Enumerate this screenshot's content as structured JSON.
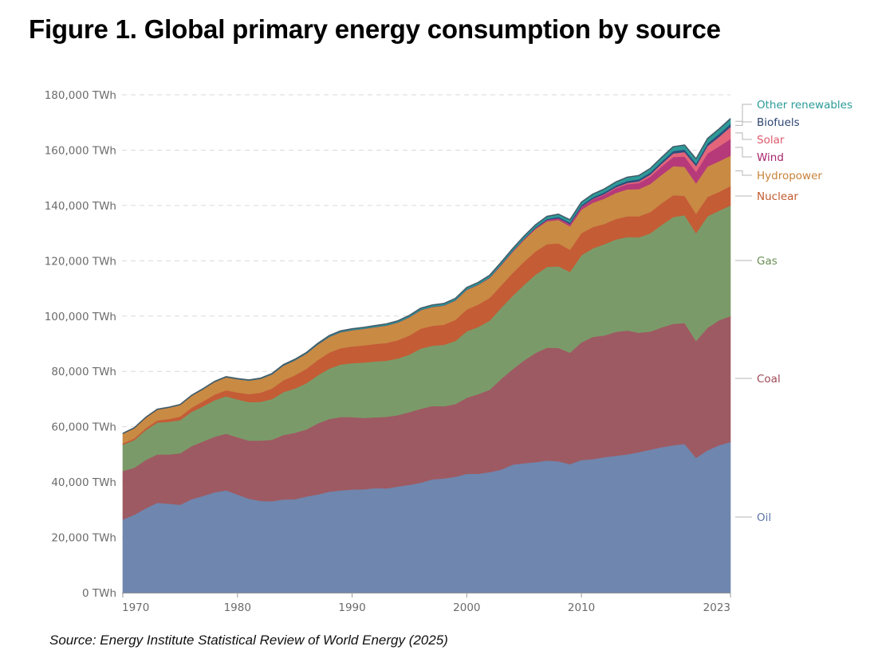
{
  "figure": {
    "title": "Figure 1. Global primary energy consumption by source",
    "source": "Source: Energy Institute Statistical Review of World Energy (2025)"
  },
  "chart_data": {
    "type": "area",
    "stacked": true,
    "title": "Figure 1. Global primary energy consumption by source",
    "xlabel": "",
    "ylabel": "",
    "unit": "TWh",
    "xlim": [
      1970,
      2023
    ],
    "ylim": [
      0,
      180000
    ],
    "grid": true,
    "legend_placement": "right (inline labels)",
    "x_ticks": [
      1970,
      1980,
      1990,
      2000,
      2010,
      2023
    ],
    "x_tick_labels": [
      "1970",
      "1980",
      "1990",
      "2000",
      "2010",
      "2023"
    ],
    "y_ticks": [
      0,
      20000,
      40000,
      60000,
      80000,
      100000,
      120000,
      140000,
      160000,
      180000
    ],
    "y_tick_labels": [
      "0 TWh",
      "20,000 TWh",
      "40,000 TWh",
      "60,000 TWh",
      "80,000 TWh",
      "100,000 TWh",
      "120,000 TWh",
      "140,000 TWh",
      "160,000 TWh",
      "180,000 TWh"
    ],
    "x": [
      1970,
      1971,
      1972,
      1973,
      1974,
      1975,
      1976,
      1977,
      1978,
      1979,
      1980,
      1981,
      1982,
      1983,
      1984,
      1985,
      1986,
      1987,
      1988,
      1989,
      1990,
      1991,
      1992,
      1993,
      1994,
      1995,
      1996,
      1997,
      1998,
      1999,
      2000,
      2001,
      2002,
      2003,
      2004,
      2005,
      2006,
      2007,
      2008,
      2009,
      2010,
      2011,
      2012,
      2013,
      2014,
      2015,
      2016,
      2017,
      2018,
      2019,
      2020,
      2021,
      2022,
      2023
    ],
    "series": [
      {
        "name": "Oil",
        "color": "#6f86ae",
        "label_color": "#5b74a8",
        "values": [
          26500,
          28200,
          30500,
          32500,
          32200,
          31800,
          33800,
          35000,
          36300,
          37000,
          35500,
          34000,
          33200,
          33100,
          33700,
          33800,
          34800,
          35500,
          36500,
          37000,
          37300,
          37400,
          37800,
          37700,
          38400,
          39000,
          39800,
          41000,
          41300,
          41900,
          43000,
          43000,
          43600,
          44500,
          46300,
          46800,
          47200,
          47800,
          47500,
          46500,
          48000,
          48300,
          49000,
          49500,
          50000,
          50800,
          51700,
          52600,
          53300,
          53800,
          48800,
          51500,
          53300,
          54500
        ]
      },
      {
        "name": "Coal",
        "color": "#9e5a62",
        "label_color": "#9e4a55",
        "values": [
          17500,
          17000,
          17500,
          17500,
          17800,
          18600,
          19200,
          19700,
          20100,
          20500,
          20700,
          21000,
          21800,
          22200,
          23300,
          24000,
          24200,
          25700,
          26300,
          26500,
          26200,
          25800,
          25600,
          25900,
          25800,
          26300,
          26700,
          26500,
          26100,
          26300,
          27500,
          28800,
          29800,
          32800,
          34500,
          37200,
          39500,
          40800,
          41000,
          40300,
          42500,
          44200,
          44000,
          44800,
          44800,
          43200,
          42700,
          43300,
          43900,
          43700,
          42200,
          44300,
          45200,
          45500
        ]
      },
      {
        "name": "Gas",
        "color": "#7a9b69",
        "label_color": "#6a8f55",
        "values": [
          9500,
          10000,
          10800,
          11500,
          11800,
          12000,
          12400,
          12700,
          13200,
          13500,
          13700,
          13900,
          14000,
          14700,
          15500,
          16000,
          16700,
          17400,
          18200,
          19000,
          19500,
          20000,
          20200,
          20300,
          20500,
          20800,
          21800,
          21800,
          22200,
          22800,
          24000,
          24300,
          25000,
          25700,
          26500,
          27300,
          28300,
          29200,
          29500,
          29200,
          31500,
          32000,
          33000,
          33400,
          33800,
          34500,
          35500,
          37100,
          38600,
          39000,
          39000,
          40300,
          39600,
          40000
        ]
      },
      {
        "name": "Nuclear",
        "color": "#c45c36",
        "label_color": "#c25a2e",
        "values": [
          500,
          600,
          700,
          800,
          1000,
          1300,
          1500,
          1800,
          2000,
          2200,
          2500,
          2900,
          3300,
          3800,
          4300,
          4800,
          5200,
          5500,
          5800,
          5900,
          6000,
          6200,
          6300,
          6400,
          6600,
          6900,
          7200,
          7200,
          7300,
          7600,
          7900,
          8100,
          8200,
          8100,
          8300,
          8400,
          8400,
          8200,
          8300,
          8000,
          8000,
          7700,
          7300,
          7400,
          7500,
          7600,
          7700,
          7800,
          7900,
          7000,
          7000,
          7000,
          6800,
          7000
        ]
      },
      {
        "name": "Hydropower",
        "color": "#c98a44",
        "label_color": "#c8823a",
        "values": [
          3500,
          3700,
          3800,
          3900,
          4100,
          4200,
          4300,
          4400,
          4600,
          4700,
          4800,
          4900,
          5000,
          5100,
          5300,
          5400,
          5500,
          5600,
          5700,
          5800,
          5900,
          6000,
          6100,
          6300,
          6400,
          6600,
          6700,
          6800,
          6900,
          7000,
          7100,
          7100,
          7200,
          7300,
          7600,
          7900,
          8100,
          8300,
          8500,
          8500,
          8500,
          8800,
          9200,
          9400,
          9700,
          9800,
          10200,
          10300,
          10500,
          10500,
          11000,
          11000,
          11100,
          11000
        ]
      },
      {
        "name": "Wind",
        "color": "#b63a7a",
        "label_color": "#a8256c",
        "values": [
          0,
          0,
          0,
          0,
          0,
          0,
          0,
          0,
          0,
          0,
          0,
          0,
          0,
          0,
          0,
          0,
          0,
          0,
          0,
          0,
          10,
          10,
          10,
          10,
          10,
          20,
          20,
          30,
          30,
          50,
          80,
          100,
          130,
          170,
          230,
          280,
          360,
          470,
          580,
          740,
          940,
          1200,
          1400,
          1700,
          1900,
          2200,
          2600,
          3000,
          3300,
          3700,
          4100,
          4700,
          5400,
          6000
        ]
      },
      {
        "name": "Solar",
        "color": "#e2657a",
        "label_color": "#e05a6c",
        "values": [
          0,
          0,
          0,
          0,
          0,
          0,
          0,
          0,
          0,
          0,
          0,
          0,
          0,
          0,
          0,
          0,
          0,
          0,
          0,
          0,
          0,
          0,
          0,
          0,
          0,
          0,
          0,
          0,
          0,
          0,
          0,
          0,
          0,
          0,
          0,
          0,
          0,
          10,
          30,
          50,
          90,
          170,
          260,
          360,
          460,
          600,
          760,
          1000,
          1300,
          1600,
          2200,
          2700,
          3400,
          4400
        ]
      },
      {
        "name": "Biofuels",
        "color": "#2c4d7e",
        "label_color": "#2c4470",
        "values": [
          0,
          0,
          0,
          0,
          0,
          0,
          0,
          0,
          0,
          0,
          10,
          20,
          30,
          40,
          60,
          70,
          70,
          80,
          80,
          80,
          90,
          90,
          90,
          100,
          100,
          110,
          120,
          120,
          110,
          110,
          110,
          110,
          130,
          160,
          170,
          210,
          270,
          350,
          460,
          530,
          590,
          600,
          610,
          660,
          710,
          740,
          750,
          790,
          860,
          910,
          880,
          950,
          1000,
          1100
        ]
      },
      {
        "name": "Other renewables",
        "color": "#2e9a98",
        "label_color": "#2a9a98",
        "values": [
          100,
          110,
          120,
          130,
          140,
          150,
          160,
          170,
          180,
          190,
          200,
          210,
          230,
          250,
          280,
          310,
          330,
          350,
          370,
          400,
          420,
          440,
          470,
          490,
          510,
          540,
          560,
          590,
          610,
          640,
          670,
          690,
          720,
          760,
          800,
          840,
          890,
          940,
          980,
          1020,
          1100,
          1150,
          1220,
          1280,
          1350,
          1400,
          1460,
          1520,
          1580,
          1650,
          1700,
          1780,
          1850,
          1900
        ]
      }
    ]
  }
}
